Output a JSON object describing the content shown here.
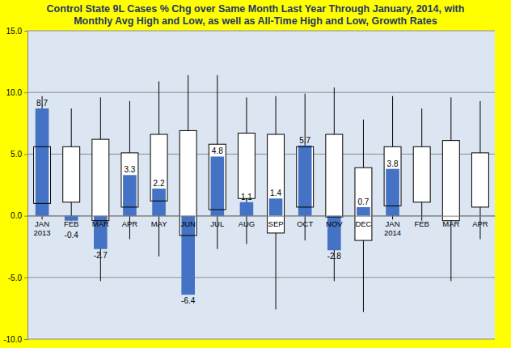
{
  "chart_data": {
    "type": "bar",
    "title": [
      "Control State 9L Cases % Chg over Same Month Last Year Through January, 2014, with",
      "Monthly Avg High and Low, as well as All-Time High and Low,  Growth Rates"
    ],
    "categories": [
      "JAN 2013",
      "FEB",
      "MAR",
      "APR",
      "MAY",
      "JUN",
      "JUL",
      "AUG",
      "SEP",
      "OCT",
      "NOV",
      "DEC",
      "JAN 2014",
      "FEB",
      "MAR",
      "APR"
    ],
    "values": [
      8.7,
      -0.4,
      -2.7,
      3.3,
      2.2,
      -6.4,
      4.8,
      1.1,
      1.4,
      5.7,
      -2.8,
      0.7,
      3.8,
      null,
      null,
      null
    ],
    "avg_high": [
      5.6,
      5.6,
      6.2,
      5.1,
      6.6,
      6.9,
      5.8,
      6.7,
      6.6,
      5.6,
      6.6,
      3.9,
      5.6,
      5.6,
      6.1,
      5.1
    ],
    "avg_low": [
      1.0,
      1.1,
      -0.4,
      0.7,
      1.2,
      -1.6,
      0.5,
      1.4,
      -1.4,
      0.7,
      -0.1,
      -2.0,
      0.8,
      1.1,
      -0.4,
      0.7
    ],
    "all_time_high": [
      9.7,
      8.7,
      9.6,
      9.3,
      10.9,
      11.4,
      11.4,
      9.6,
      9.7,
      9.9,
      10.4,
      7.8,
      9.7,
      8.7,
      9.6,
      9.3
    ],
    "all_time_low": [
      -0.3,
      -0.4,
      -5.3,
      -1.9,
      -3.3,
      -6.4,
      -2.7,
      -2.3,
      -7.6,
      -2.0,
      -5.3,
      -7.8,
      -0.3,
      -0.4,
      -5.3,
      -1.9
    ],
    "color": "#4472c4",
    "ylim": [
      -10,
      15
    ],
    "yticks": [
      {
        "value": -10,
        "label": "-10.0"
      },
      {
        "value": -5,
        "label": "-5.0"
      },
      {
        "value": 0,
        "label": "0.0"
      },
      {
        "value": 5,
        "label": "5.0"
      },
      {
        "value": 10,
        "label": "10.0"
      },
      {
        "value": 15,
        "label": "15.0"
      }
    ],
    "grid": true,
    "data_labels": true
  }
}
